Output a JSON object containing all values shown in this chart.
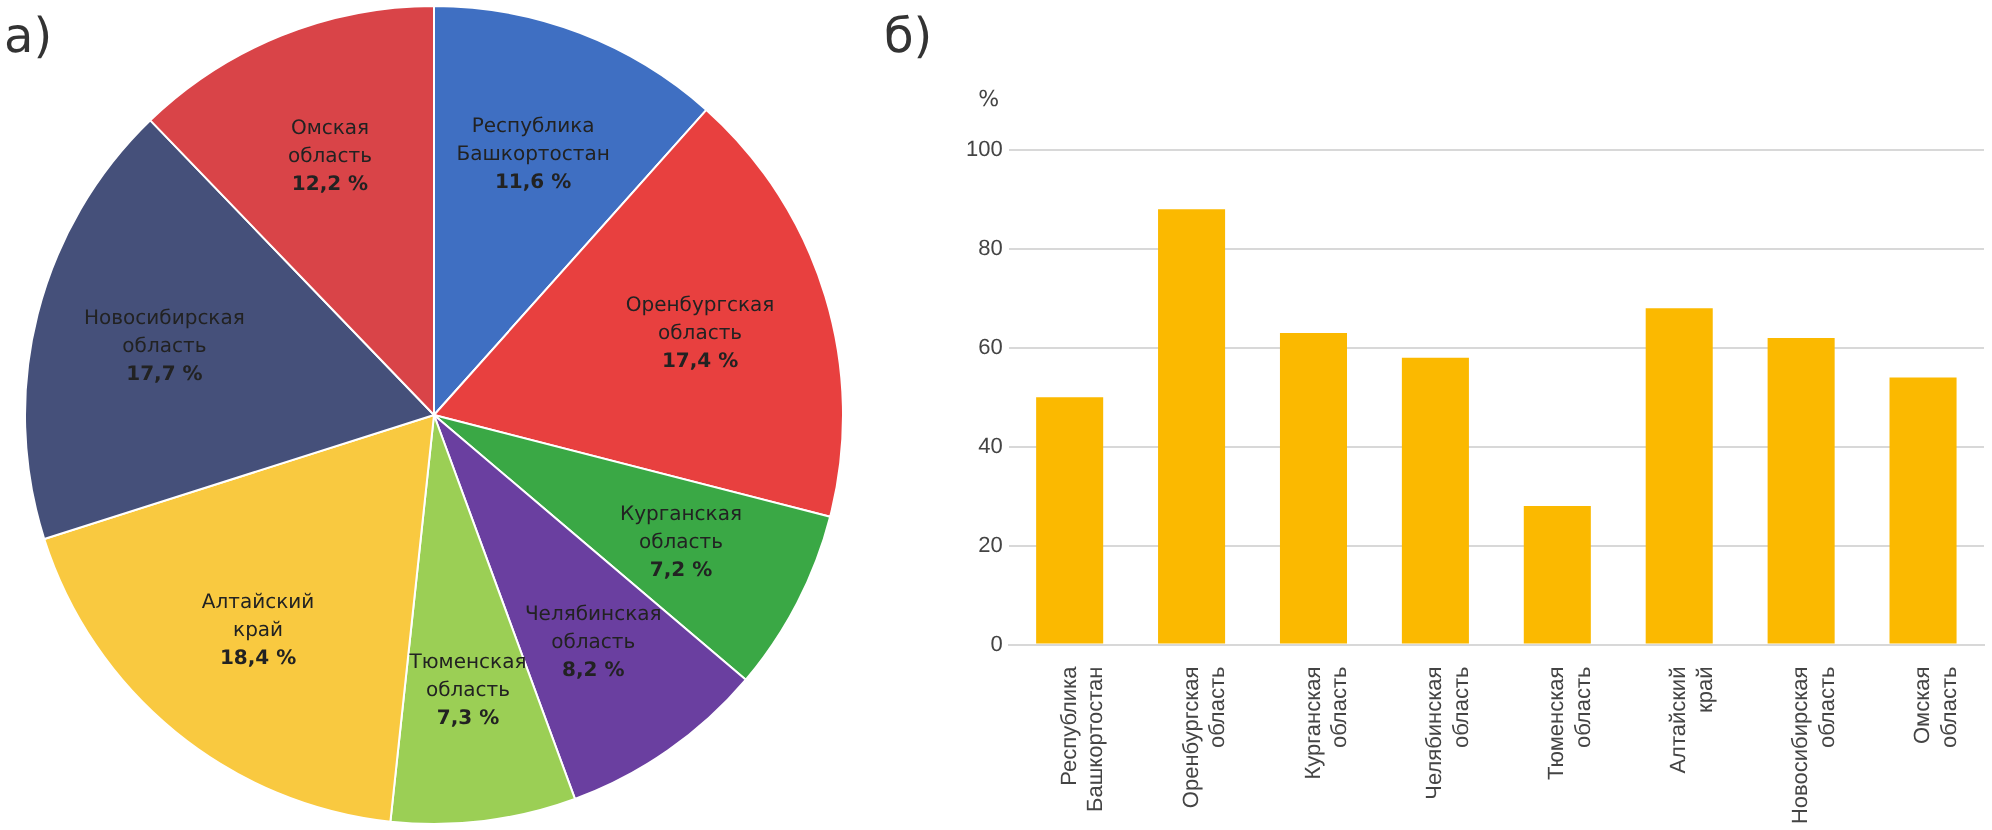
{
  "chart_data": [
    {
      "type": "pie",
      "title": "а)",
      "categories": [
        "Республика Башкортостан",
        "Оренбургская область",
        "Курганская область",
        "Челябинская область",
        "Тюменская область",
        "Алтайский край",
        "Новосибирская область",
        "Омская область"
      ],
      "values": [
        11.6,
        17.4,
        7.2,
        8.2,
        7.3,
        18.4,
        17.7,
        12.2
      ],
      "value_labels": [
        "11,6 %",
        "17,4 %",
        "7,2 %",
        "8,2 %",
        "7,3 %",
        "18,4 %",
        "17,7 %",
        "12,2 %"
      ],
      "colors": [
        "#3f6fc2",
        "#e8403f",
        "#3aa845",
        "#6a3fa0",
        "#9bcf55",
        "#f9c940",
        "#45507a",
        "#d94448"
      ],
      "legend": false
    },
    {
      "type": "bar",
      "title": "б)",
      "ylabel": "%",
      "categories": [
        "Республика Башкортостан",
        "Оренбургская область",
        "Курганская область",
        "Челябинская область",
        "Тюменская область",
        "Алтайский край",
        "Новосибирская область",
        "Омская область"
      ],
      "values": [
        50,
        88,
        63,
        58,
        28,
        68,
        62,
        54
      ],
      "color": "#fbb900",
      "ylim": [
        0,
        100
      ],
      "yticks": [
        0,
        20,
        40,
        60,
        80,
        100
      ],
      "grid": "y",
      "legend": false
    }
  ]
}
